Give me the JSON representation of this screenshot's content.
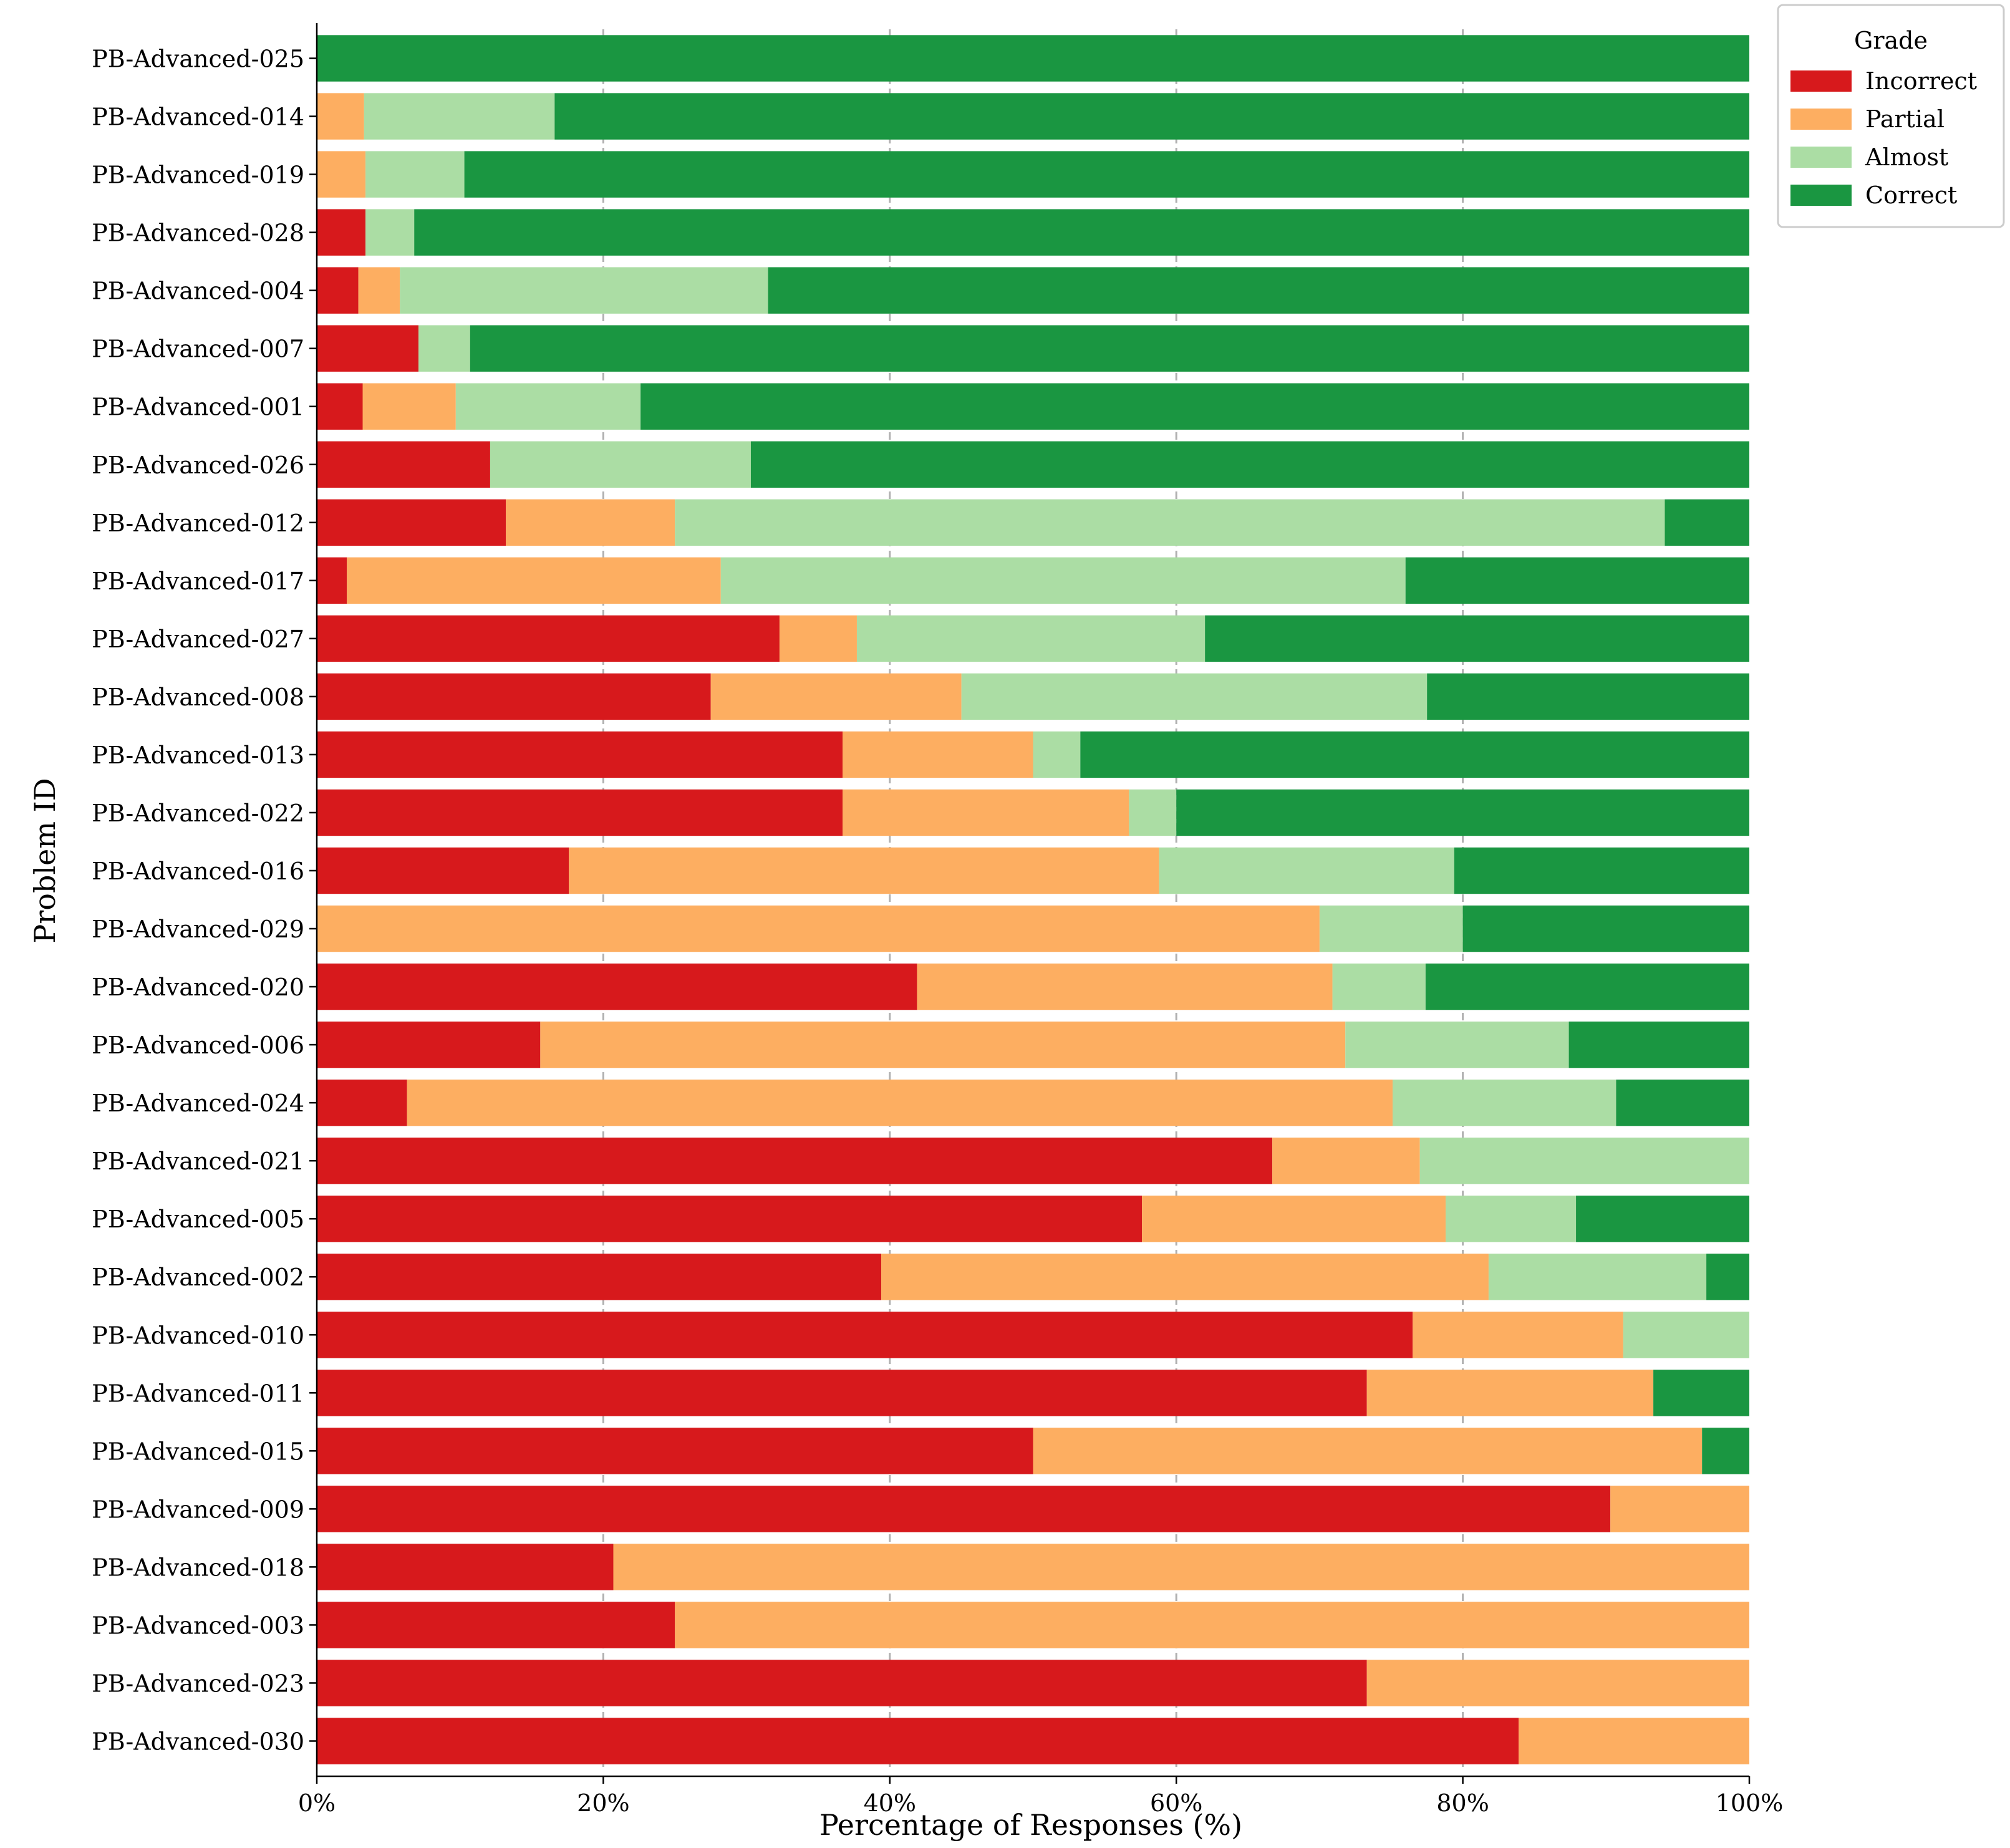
{
  "chart_data": {
    "type": "bar",
    "orientation": "horizontal",
    "stacked": true,
    "normalized_percent": true,
    "xlabel": "Percentage of Responses (%)",
    "ylabel": "Problem ID",
    "xlim": [
      0,
      100
    ],
    "xticks": [
      0,
      20,
      40,
      60,
      80,
      100
    ],
    "xtick_labels": [
      "0%",
      "20%",
      "40%",
      "60%",
      "80%",
      "100%"
    ],
    "grid": "vertical dashed",
    "legend": {
      "title": "Grade",
      "position": "top-right, outside plot"
    },
    "categories": [
      "PB-Advanced-025",
      "PB-Advanced-014",
      "PB-Advanced-019",
      "PB-Advanced-028",
      "PB-Advanced-004",
      "PB-Advanced-007",
      "PB-Advanced-001",
      "PB-Advanced-026",
      "PB-Advanced-012",
      "PB-Advanced-017",
      "PB-Advanced-027",
      "PB-Advanced-008",
      "PB-Advanced-013",
      "PB-Advanced-022",
      "PB-Advanced-016",
      "PB-Advanced-029",
      "PB-Advanced-020",
      "PB-Advanced-006",
      "PB-Advanced-024",
      "PB-Advanced-021",
      "PB-Advanced-005",
      "PB-Advanced-002",
      "PB-Advanced-010",
      "PB-Advanced-011",
      "PB-Advanced-015",
      "PB-Advanced-009",
      "PB-Advanced-018",
      "PB-Advanced-003",
      "PB-Advanced-023",
      "PB-Advanced-030"
    ],
    "series": [
      {
        "name": "Incorrect",
        "color": "#d7191c",
        "values": [
          0,
          0,
          0,
          3.4,
          2.9,
          7.1,
          3.2,
          12.1,
          13.2,
          2.1,
          32.3,
          27.5,
          36.7,
          36.7,
          17.6,
          0,
          41.9,
          15.6,
          6.3,
          66.7,
          57.6,
          39.4,
          76.5,
          73.3,
          50.0,
          90.3,
          20.7,
          25.0,
          73.3,
          83.9
        ]
      },
      {
        "name": "Partial",
        "color": "#fdae61",
        "values": [
          0,
          3.3,
          3.4,
          0,
          2.9,
          0,
          6.5,
          0,
          11.8,
          26.1,
          5.4,
          17.5,
          13.3,
          20.0,
          41.2,
          70.0,
          29.0,
          56.2,
          68.8,
          10.3,
          21.2,
          42.4,
          14.7,
          20.0,
          46.7,
          9.7,
          79.3,
          75.0,
          26.7,
          16.1
        ]
      },
      {
        "name": "Almost",
        "color": "#abdda4",
        "values": [
          0,
          13.3,
          6.9,
          3.4,
          25.7,
          3.6,
          12.9,
          18.2,
          69.1,
          47.8,
          24.3,
          32.5,
          3.3,
          3.3,
          20.6,
          10.0,
          6.5,
          15.6,
          15.6,
          23.0,
          9.1,
          15.2,
          8.8,
          0,
          0,
          0,
          0,
          0,
          0,
          0
        ]
      },
      {
        "name": "Correct",
        "color": "#1a9641",
        "values": [
          100,
          83.4,
          89.7,
          93.2,
          68.5,
          89.3,
          77.4,
          69.7,
          5.9,
          24.0,
          38.0,
          22.5,
          46.7,
          40.0,
          20.6,
          20.0,
          22.6,
          12.6,
          9.3,
          0,
          12.1,
          3.0,
          0,
          6.7,
          3.3,
          0,
          0,
          0,
          0,
          0
        ]
      }
    ]
  }
}
